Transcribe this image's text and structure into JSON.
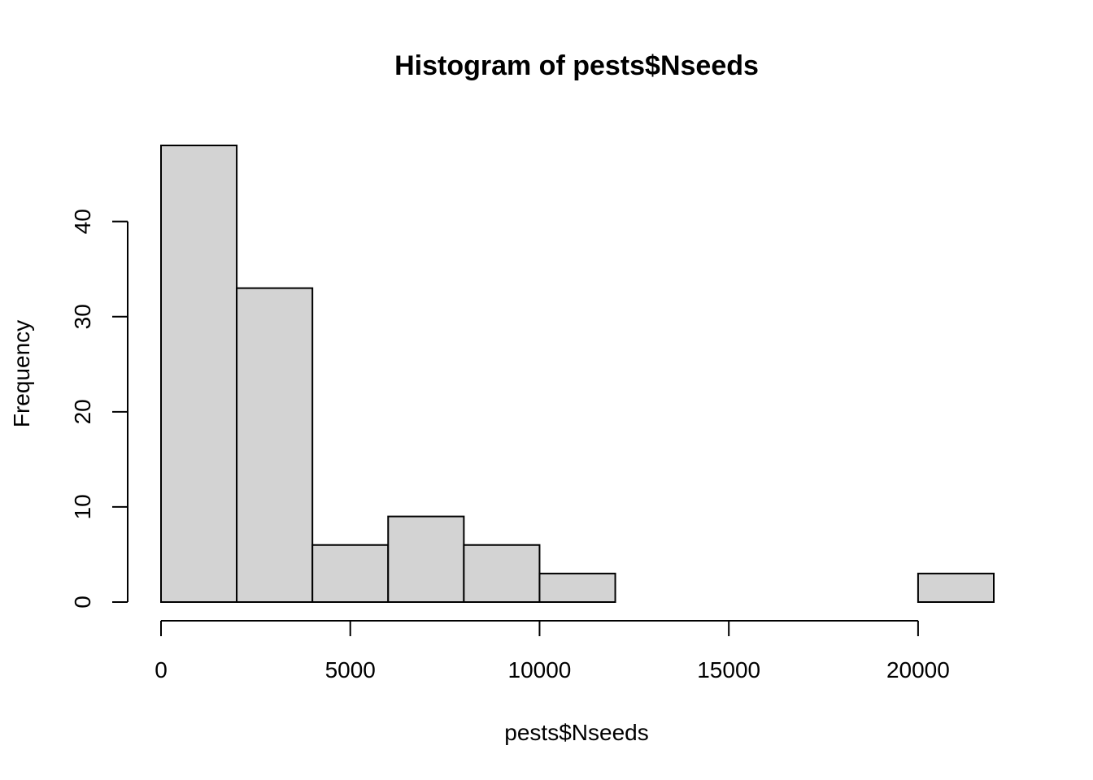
{
  "chart_data": {
    "type": "bar",
    "title": "Histogram of pests$Nseeds",
    "xlabel": "pests$Nseeds",
    "ylabel": "Frequency",
    "bin_edges": [
      0,
      2000,
      4000,
      6000,
      8000,
      10000,
      12000,
      14000,
      16000,
      18000,
      20000,
      22000
    ],
    "values": [
      48,
      33,
      6,
      9,
      6,
      3,
      0,
      0,
      0,
      0,
      3
    ],
    "x_ticks": [
      0,
      5000,
      10000,
      15000,
      20000
    ],
    "y_ticks": [
      0,
      10,
      20,
      30,
      40
    ],
    "xlim": [
      0,
      22000
    ],
    "ylim": [
      0,
      48
    ],
    "grid": false,
    "bar_color": "#d3d3d3"
  }
}
